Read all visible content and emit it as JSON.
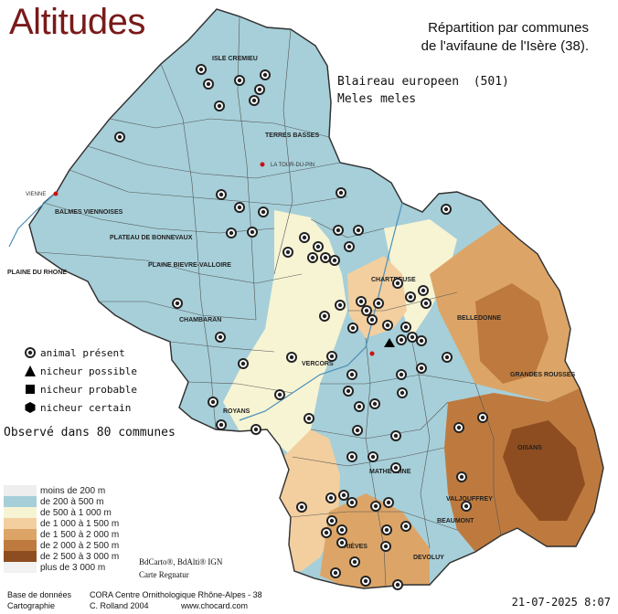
{
  "title": "Altitudes",
  "heading": {
    "line1": "Répartition par communes",
    "line2": "de l'avifaune de l'Isère (38)."
  },
  "species": {
    "common_name": "Blaireau europeen",
    "count": "(501)",
    "latin_name": "Meles meles"
  },
  "legend": {
    "present": "animal présent",
    "possible": "nicheur possible",
    "probable": "nicheur probable",
    "certain": "nicheur certain"
  },
  "observed": "Observé dans 80 communes",
  "altitude_legend": [
    {
      "label": "moins de 200 m",
      "color": "#eeeeee"
    },
    {
      "label": "de 200 à 500 m",
      "color": "#a6cfd9"
    },
    {
      "label": "de 500 à 1 000 m",
      "color": "#f7f4d4"
    },
    {
      "label": "de 1 000 à 1 500 m",
      "color": "#f3cf9f"
    },
    {
      "label": "de 1 500 à 2 000 m",
      "color": "#dca567"
    },
    {
      "label": "de 2 000 à 2 500 m",
      "color": "#be7a3e"
    },
    {
      "label": "de 2 500 à 3 000 m",
      "color": "#8d4d20"
    },
    {
      "label": "plus de 3 000 m",
      "color": "#f2f2f2"
    }
  ],
  "map_credits": {
    "line1": "BdCarto®, BdAlti® IGN",
    "line2": "Carte Regnatur"
  },
  "footer": {
    "base_label": "Base de données",
    "base_value": "CORA Centre Ornithologique Rhône-Alpes - 38",
    "carto_label": "Cartographie",
    "carto_value": "C. Rolland 2004",
    "website": "www.chocard.com"
  },
  "date": "21-07-2025 8:07",
  "places": {
    "vienne": "VIENNE",
    "la_tour_du_pin": "LA TOUR-DU-PIN",
    "chartreuse": "CHARTREUSE",
    "belledonne": "BELLEDONNE",
    "vercors": "VERCORS",
    "oisans": "OISANS",
    "matheysine": "MATHEYSINE",
    "trieves": "TRIÈVES",
    "beaumont": "BEAUMONT",
    "devoluy": "DEVOLUY",
    "valjouffrey": "VALJOUFFREY",
    "terres_basses": "TERRES BASSES",
    "balmes_viennoises": "BALMES VIENNOISES",
    "plaine_du_rhone": "PLAINE DU RHONE",
    "chambaran": "CHAMBARAN",
    "royans": "ROYANS",
    "isle_cremieu": "ISLE CREMIEU",
    "grandes_rousses": "GRANDES ROUSSES",
    "plateau_bonnevaux": "PLATEAU DE BONNEVAUX",
    "bievre_valloire": "PLAINE BIEVRE-VALLOIRE"
  },
  "map_symbols": {
    "present_icon": "circle-target-icon",
    "possible_icon": "triangle-icon",
    "probable_icon": "square-icon",
    "certain_icon": "hexagon-icon"
  }
}
